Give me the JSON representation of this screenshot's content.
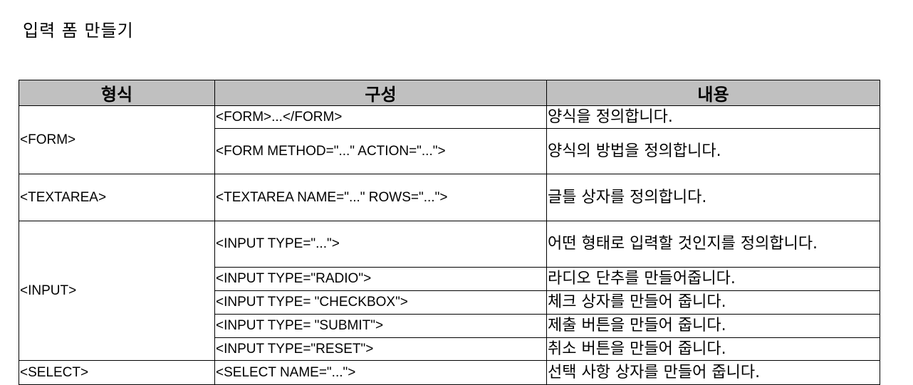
{
  "title": "입력 폼 만들기",
  "headers": [
    "형식",
    "구성",
    "내용"
  ],
  "rows": [
    {
      "form": "<FORM>",
      "comp": "<FORM>...</FORM>",
      "desc": "양식을 정의합니다."
    },
    {
      "comp": "<FORM METHOD=\"...\" ACTION=\"...\">",
      "desc": "양식의 방법을 정의합니다."
    },
    {
      "form": "<TEXTAREA>",
      "comp": "<TEXTAREA NAME=\"...\" ROWS=\"...\">",
      "desc": "글틀 상자를 정의합니다."
    },
    {
      "form": "<INPUT>",
      "comp": "<INPUT TYPE=\"...\">",
      "desc": "어떤 형태로 입력할 것인지를 정의합니다."
    },
    {
      "comp": "<INPUT TYPE=\"RADIO\">",
      "desc": "라디오 단추를 만들어줍니다."
    },
    {
      "comp": "<INPUT TYPE= \"CHECKBOX\">",
      "desc": "체크 상자를 만들어 줍니다."
    },
    {
      "comp": "<INPUT TYPE= \"SUBMIT\">",
      "desc": "제출 버튼을 만들어 줍니다."
    },
    {
      "comp": "<INPUT TYPE=\"RESET\">",
      "desc": "취소 버튼을 만들어 줍니다."
    },
    {
      "form": "<SELECT>",
      "comp": "<SELECT NAME=\"...\">",
      "desc": "선택 사항 상자를 만들어 줍니다."
    }
  ]
}
